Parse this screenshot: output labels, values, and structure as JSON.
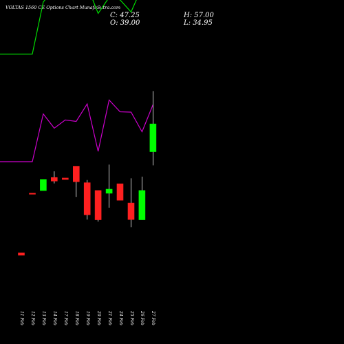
{
  "header": {
    "title": "VOLTAS 1560  CE Options  Chart MunafaSutra.com",
    "close": "C: 47.25",
    "open": "O: 39.00",
    "high": "H: 57.00",
    "low": "L: 34.95"
  },
  "colors": {
    "background": "#000000",
    "upper_line": "#00dd00",
    "lower_line": "#cc00cc",
    "up_candle": "#00ff00",
    "down_candle": "#ff2020",
    "wick": "#ffffff"
  },
  "chart_data": {
    "type": "candlestick",
    "categories": [
      "11 Feb",
      "12 Feb",
      "13 Feb",
      "14 Feb",
      "17 Feb",
      "18 Feb",
      "19 Feb",
      "20 Feb",
      "21 Feb",
      "24 Feb",
      "25 Feb",
      "26 Feb",
      "27 Feb"
    ],
    "candles": [
      {
        "open": 9.0,
        "high": 9.0,
        "low": 8.3,
        "close": 8.3
      },
      {
        "open": 26.7,
        "high": 26.7,
        "low": 26.5,
        "close": 26.5
      },
      {
        "open": 27.5,
        "high": 30.8,
        "low": 27.5,
        "close": 30.8
      },
      {
        "open": 31.4,
        "high": 33.2,
        "low": 29.6,
        "close": 30.3
      },
      {
        "open": 31.2,
        "high": 31.2,
        "low": 30.8,
        "close": 30.8
      },
      {
        "open": 34.7,
        "high": 34.7,
        "low": 25.6,
        "close": 30.1
      },
      {
        "open": 29.8,
        "high": 30.6,
        "low": 18.9,
        "close": 20.3
      },
      {
        "open": 27.5,
        "high": 27.5,
        "low": 18.3,
        "close": 18.8
      },
      {
        "open": 26.7,
        "high": 35.2,
        "low": 22.4,
        "close": 27.9
      },
      {
        "open": 29.5,
        "high": 29.5,
        "low": 24.7,
        "close": 24.6
      },
      {
        "open": 23.8,
        "high": 31.1,
        "low": 16.6,
        "close": 18.9
      },
      {
        "open": 18.8,
        "high": 31.6,
        "low": 18.8,
        "close": 27.5
      },
      {
        "open": 39.0,
        "high": 57.0,
        "low": 34.95,
        "close": 47.25
      }
    ],
    "series": [
      {
        "values": [
          97.8,
          97.8,
          112.4,
          116.1,
          116.5,
          116.8,
          117.0,
          109.2,
          113.7,
          113.0,
          109.6,
          116.6,
          123.8
        ]
      },
      {
        "values": [
          67.6,
          67.6,
          81.0,
          77.0,
          79.3,
          78.9,
          83.8,
          70.5,
          84.9,
          81.6,
          81.5,
          76.0,
          83.6
        ]
      }
    ]
  }
}
